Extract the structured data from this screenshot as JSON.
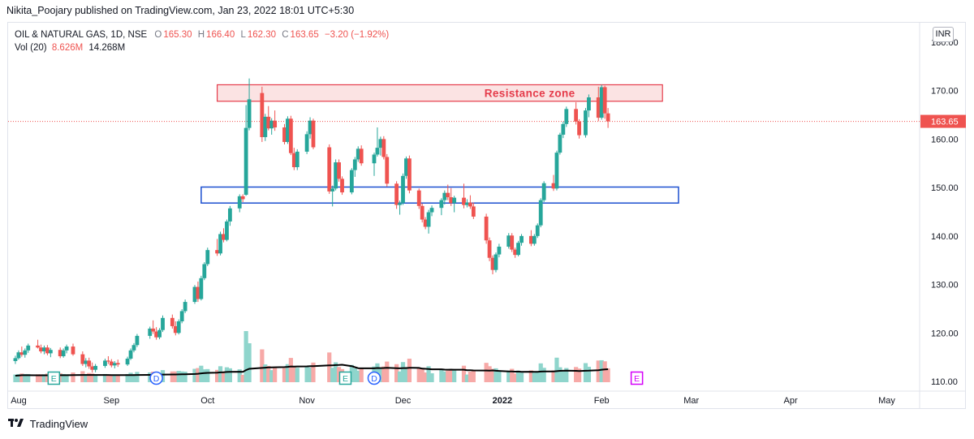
{
  "header": {
    "published_line": "Nikita_Poojary published on TradingView.com, Jan 23, 2022 18:01 UTC+5:30"
  },
  "legend": {
    "symbol_line": "OIL & NATURAL GAS, 1D, NSE",
    "o_label": "O",
    "o_value": "165.30",
    "h_label": "H",
    "h_value": "166.40",
    "l_label": "L",
    "l_value": "162.30",
    "c_label": "C",
    "c_value": "163.65",
    "change": "−3.20 (−1.92%)",
    "vol_label": "Vol (20)",
    "vol_value": "8.626M",
    "vol_ma_value": "14.268M"
  },
  "currency": "INR",
  "footer": {
    "brand": "TradingView"
  },
  "colors": {
    "up": "#26a69a",
    "down": "#ef5350",
    "vol_up": "#8fd5cc",
    "vol_down": "#f7a9a7",
    "resistance_fill": "#fbe3e3",
    "resistance_stroke": "#e53b4a",
    "support_stroke": "#1c4fd0",
    "ma_line": "#000000",
    "price_tag": "#ef5350",
    "event_earnings": "#26a69a",
    "event_dividend": "#2962ff",
    "event_future": "#d500f9"
  },
  "chart_data": {
    "type": "candlestick",
    "symbol": "OIL & NATURAL GAS",
    "interval": "1D",
    "exchange": "NSE",
    "last_price": 163.65,
    "ylim": [
      108,
      184
    ],
    "y_ticks": [
      "110.00",
      "120.00",
      "130.00",
      "140.00",
      "150.00",
      "160.00",
      "170.00",
      "180.00"
    ],
    "x_ticks": [
      "Aug",
      "Sep",
      "Oct",
      "Nov",
      "Dec",
      "2022",
      "Feb",
      "Mar",
      "Apr",
      "May"
    ],
    "x_range": [
      "2021-08-01",
      "2022-05-10"
    ],
    "annotations": [
      {
        "type": "rectangle",
        "label": "Resistance zone",
        "price_low": 167.8,
        "price_high": 171.2,
        "date_start": "2021-10-04",
        "date_end": "2022-02-20"
      },
      {
        "type": "rectangle",
        "label": "",
        "price_low": 146.8,
        "price_high": 150.1,
        "date_start": "2021-09-29",
        "date_end": "2022-02-25"
      }
    ],
    "events": [
      {
        "type": "earnings",
        "letter": "E",
        "date": "2021-08-14"
      },
      {
        "type": "dividend",
        "letter": "D",
        "date": "2021-09-15"
      },
      {
        "type": "earnings",
        "letter": "E",
        "date": "2021-11-13"
      },
      {
        "type": "dividend",
        "letter": "D",
        "date": "2021-11-22"
      },
      {
        "type": "earnings_upcoming",
        "letter": "E",
        "date": "2022-02-12"
      }
    ],
    "candles": [
      {
        "d": "2021-08-02",
        "o": 114.2,
        "h": 115.3,
        "l": 113.6,
        "c": 114.8
      },
      {
        "d": "2021-08-03",
        "o": 114.8,
        "h": 116.4,
        "l": 114.5,
        "c": 116.0
      },
      {
        "d": "2021-08-04",
        "o": 116.0,
        "h": 117.2,
        "l": 115.1,
        "c": 115.5
      },
      {
        "d": "2021-08-05",
        "o": 115.5,
        "h": 116.8,
        "l": 114.9,
        "c": 116.4
      },
      {
        "d": "2021-08-06",
        "o": 116.4,
        "h": 117.8,
        "l": 115.9,
        "c": 117.4
      },
      {
        "d": "2021-08-09",
        "o": 117.4,
        "h": 118.6,
        "l": 116.8,
        "c": 117.0
      },
      {
        "d": "2021-08-10",
        "o": 117.0,
        "h": 117.6,
        "l": 115.8,
        "c": 116.2
      },
      {
        "d": "2021-08-11",
        "o": 116.2,
        "h": 117.4,
        "l": 115.6,
        "c": 117.0
      },
      {
        "d": "2021-08-12",
        "o": 117.0,
        "h": 117.5,
        "l": 115.4,
        "c": 115.8
      },
      {
        "d": "2021-08-13",
        "o": 115.8,
        "h": 116.9,
        "l": 115.0,
        "c": 116.5
      },
      {
        "d": "2021-08-16",
        "o": 116.5,
        "h": 117.0,
        "l": 114.8,
        "c": 115.2
      },
      {
        "d": "2021-08-17",
        "o": 115.2,
        "h": 116.8,
        "l": 114.9,
        "c": 116.4
      },
      {
        "d": "2021-08-18",
        "o": 116.4,
        "h": 117.6,
        "l": 115.8,
        "c": 117.2
      },
      {
        "d": "2021-08-20",
        "o": 117.2,
        "h": 117.8,
        "l": 115.3,
        "c": 115.6
      },
      {
        "d": "2021-08-23",
        "o": 115.6,
        "h": 116.2,
        "l": 113.2,
        "c": 113.6
      },
      {
        "d": "2021-08-24",
        "o": 113.6,
        "h": 114.8,
        "l": 112.9,
        "c": 114.3
      },
      {
        "d": "2021-08-25",
        "o": 114.3,
        "h": 114.9,
        "l": 112.6,
        "c": 113.1
      },
      {
        "d": "2021-08-26",
        "o": 113.1,
        "h": 113.9,
        "l": 111.8,
        "c": 112.4
      },
      {
        "d": "2021-08-27",
        "o": 112.4,
        "h": 113.6,
        "l": 111.9,
        "c": 113.2
      },
      {
        "d": "2021-08-30",
        "o": 113.2,
        "h": 114.7,
        "l": 112.8,
        "c": 114.3
      },
      {
        "d": "2021-08-31",
        "o": 114.3,
        "h": 115.2,
        "l": 113.6,
        "c": 114.1
      },
      {
        "d": "2021-09-01",
        "o": 114.1,
        "h": 114.6,
        "l": 112.9,
        "c": 113.3
      },
      {
        "d": "2021-09-02",
        "o": 113.3,
        "h": 114.2,
        "l": 112.7,
        "c": 113.8
      },
      {
        "d": "2021-09-03",
        "o": 113.8,
        "h": 114.5,
        "l": 113.0,
        "c": 113.5
      },
      {
        "d": "2021-09-06",
        "o": 113.5,
        "h": 115.1,
        "l": 113.2,
        "c": 114.7
      },
      {
        "d": "2021-09-07",
        "o": 114.7,
        "h": 116.8,
        "l": 114.4,
        "c": 116.4
      },
      {
        "d": "2021-09-08",
        "o": 116.4,
        "h": 117.9,
        "l": 116.0,
        "c": 117.5
      },
      {
        "d": "2021-09-09",
        "o": 117.5,
        "h": 119.8,
        "l": 117.1,
        "c": 119.4
      },
      {
        "d": "2021-09-13",
        "o": 119.4,
        "h": 121.3,
        "l": 118.8,
        "c": 120.9
      },
      {
        "d": "2021-09-14",
        "o": 120.9,
        "h": 122.6,
        "l": 119.8,
        "c": 120.3
      },
      {
        "d": "2021-09-15",
        "o": 120.3,
        "h": 121.2,
        "l": 118.6,
        "c": 119.1
      },
      {
        "d": "2021-09-16",
        "o": 119.1,
        "h": 121.0,
        "l": 118.7,
        "c": 120.6
      },
      {
        "d": "2021-09-17",
        "o": 120.6,
        "h": 123.6,
        "l": 120.2,
        "c": 123.1
      },
      {
        "d": "2021-09-20",
        "o": 123.1,
        "h": 123.8,
        "l": 120.9,
        "c": 121.4
      },
      {
        "d": "2021-09-21",
        "o": 121.4,
        "h": 122.4,
        "l": 119.5,
        "c": 120.0
      },
      {
        "d": "2021-09-22",
        "o": 120.0,
        "h": 122.8,
        "l": 119.7,
        "c": 122.4
      },
      {
        "d": "2021-09-23",
        "o": 122.4,
        "h": 124.9,
        "l": 122.0,
        "c": 124.5
      },
      {
        "d": "2021-09-24",
        "o": 124.5,
        "h": 126.9,
        "l": 124.1,
        "c": 126.4
      },
      {
        "d": "2021-09-27",
        "o": 126.4,
        "h": 129.9,
        "l": 126.0,
        "c": 129.5
      },
      {
        "d": "2021-09-28",
        "o": 129.5,
        "h": 130.6,
        "l": 126.4,
        "c": 127.0
      },
      {
        "d": "2021-09-29",
        "o": 127.0,
        "h": 131.8,
        "l": 126.7,
        "c": 131.3
      },
      {
        "d": "2021-09-30",
        "o": 131.3,
        "h": 134.6,
        "l": 130.9,
        "c": 134.2
      },
      {
        "d": "2021-10-01",
        "o": 134.2,
        "h": 137.6,
        "l": 133.8,
        "c": 137.1
      },
      {
        "d": "2021-10-04",
        "o": 137.1,
        "h": 139.4,
        "l": 135.9,
        "c": 136.4
      },
      {
        "d": "2021-10-05",
        "o": 136.4,
        "h": 140.9,
        "l": 136.0,
        "c": 140.4
      },
      {
        "d": "2021-10-06",
        "o": 140.4,
        "h": 141.6,
        "l": 138.7,
        "c": 139.2
      },
      {
        "d": "2021-10-07",
        "o": 139.2,
        "h": 143.4,
        "l": 138.9,
        "c": 143.0
      },
      {
        "d": "2021-10-08",
        "o": 143.0,
        "h": 146.2,
        "l": 142.1,
        "c": 145.7
      },
      {
        "d": "2021-10-11",
        "o": 145.7,
        "h": 148.6,
        "l": 144.9,
        "c": 148.2
      },
      {
        "d": "2021-10-12",
        "o": 148.2,
        "h": 148.6,
        "l": 147.0,
        "c": 147.6
      },
      {
        "d": "2021-10-13",
        "o": 148.5,
        "h": 167.0,
        "l": 148.3,
        "c": 162.3
      },
      {
        "d": "2021-10-14",
        "o": 162.3,
        "h": 172.5,
        "l": 161.8,
        "c": 168.2
      },
      {
        "d": "2021-10-18",
        "o": 169.5,
        "h": 170.8,
        "l": 159.4,
        "c": 160.4
      },
      {
        "d": "2021-10-19",
        "o": 160.4,
        "h": 165.2,
        "l": 159.6,
        "c": 164.6
      },
      {
        "d": "2021-10-20",
        "o": 164.6,
        "h": 166.8,
        "l": 161.8,
        "c": 162.2
      },
      {
        "d": "2021-10-21",
        "o": 162.2,
        "h": 164.3,
        "l": 160.9,
        "c": 163.8
      },
      {
        "d": "2021-10-22",
        "o": 163.8,
        "h": 165.9,
        "l": 161.7,
        "c": 162.4
      },
      {
        "d": "2021-10-25",
        "o": 162.4,
        "h": 163.1,
        "l": 158.9,
        "c": 159.4
      },
      {
        "d": "2021-10-26",
        "o": 159.4,
        "h": 164.7,
        "l": 159.0,
        "c": 164.2
      },
      {
        "d": "2021-10-27",
        "o": 164.2,
        "h": 164.8,
        "l": 156.7,
        "c": 157.1
      },
      {
        "d": "2021-10-28",
        "o": 157.1,
        "h": 158.2,
        "l": 153.6,
        "c": 154.2
      },
      {
        "d": "2021-10-29",
        "o": 154.2,
        "h": 157.9,
        "l": 153.6,
        "c": 157.4
      },
      {
        "d": "2021-11-01",
        "o": 157.4,
        "h": 161.6,
        "l": 156.9,
        "c": 161.0
      },
      {
        "d": "2021-11-02",
        "o": 161.0,
        "h": 164.5,
        "l": 160.1,
        "c": 163.8
      },
      {
        "d": "2021-11-03",
        "o": 163.8,
        "h": 164.2,
        "l": 157.9,
        "c": 158.3
      },
      {
        "d": "2021-11-08",
        "o": 158.3,
        "h": 158.9,
        "l": 148.7,
        "c": 149.2
      },
      {
        "d": "2021-11-09",
        "o": 149.2,
        "h": 150.4,
        "l": 146.1,
        "c": 149.8
      },
      {
        "d": "2021-11-10",
        "o": 149.8,
        "h": 155.8,
        "l": 149.4,
        "c": 155.2
      },
      {
        "d": "2021-11-11",
        "o": 155.2,
        "h": 155.8,
        "l": 151.2,
        "c": 151.8
      },
      {
        "d": "2021-11-12",
        "o": 151.8,
        "h": 152.3,
        "l": 148.5,
        "c": 149.0
      },
      {
        "d": "2021-11-15",
        "o": 149.0,
        "h": 154.0,
        "l": 148.6,
        "c": 153.6
      },
      {
        "d": "2021-11-16",
        "o": 153.6,
        "h": 156.3,
        "l": 152.2,
        "c": 155.8
      },
      {
        "d": "2021-11-17",
        "o": 155.8,
        "h": 158.5,
        "l": 155.3,
        "c": 158.0
      },
      {
        "d": "2021-11-18",
        "o": 158.0,
        "h": 158.7,
        "l": 154.5,
        "c": 155.0
      },
      {
        "d": "2021-11-22",
        "o": 155.0,
        "h": 157.2,
        "l": 152.4,
        "c": 156.8
      },
      {
        "d": "2021-11-23",
        "o": 156.8,
        "h": 162.4,
        "l": 156.4,
        "c": 158.2
      },
      {
        "d": "2021-11-24",
        "o": 158.2,
        "h": 160.5,
        "l": 156.6,
        "c": 160.0
      },
      {
        "d": "2021-11-25",
        "o": 160.0,
        "h": 160.6,
        "l": 155.8,
        "c": 156.3
      },
      {
        "d": "2021-11-26",
        "o": 156.3,
        "h": 156.9,
        "l": 150.2,
        "c": 150.8
      },
      {
        "d": "2021-11-29",
        "o": 150.8,
        "h": 151.3,
        "l": 145.6,
        "c": 146.4
      },
      {
        "d": "2021-11-30",
        "o": 146.4,
        "h": 147.3,
        "l": 144.4,
        "c": 146.8
      },
      {
        "d": "2021-12-01",
        "o": 146.8,
        "h": 152.9,
        "l": 146.4,
        "c": 152.4
      },
      {
        "d": "2021-12-02",
        "o": 152.4,
        "h": 156.4,
        "l": 151.8,
        "c": 156.0
      },
      {
        "d": "2021-12-03",
        "o": 156.0,
        "h": 156.6,
        "l": 148.8,
        "c": 149.4
      },
      {
        "d": "2021-12-06",
        "o": 149.4,
        "h": 149.8,
        "l": 145.6,
        "c": 146.2
      },
      {
        "d": "2021-12-07",
        "o": 146.2,
        "h": 146.7,
        "l": 142.8,
        "c": 143.4
      },
      {
        "d": "2021-12-08",
        "o": 143.4,
        "h": 143.9,
        "l": 141.4,
        "c": 141.9
      },
      {
        "d": "2021-12-09",
        "o": 141.9,
        "h": 145.4,
        "l": 140.5,
        "c": 144.9
      },
      {
        "d": "2021-12-10",
        "o": 144.9,
        "h": 146.3,
        "l": 144.1,
        "c": 145.8
      },
      {
        "d": "2021-12-13",
        "o": 145.8,
        "h": 147.8,
        "l": 144.3,
        "c": 147.4
      },
      {
        "d": "2021-12-14",
        "o": 147.4,
        "h": 149.4,
        "l": 146.5,
        "c": 148.9
      },
      {
        "d": "2021-12-15",
        "o": 148.9,
        "h": 150.6,
        "l": 147.4,
        "c": 148.0
      },
      {
        "d": "2021-12-16",
        "o": 148.0,
        "h": 149.9,
        "l": 146.2,
        "c": 146.8
      },
      {
        "d": "2021-12-17",
        "o": 146.8,
        "h": 148.3,
        "l": 144.9,
        "c": 147.9
      },
      {
        "d": "2021-12-20",
        "o": 147.9,
        "h": 150.8,
        "l": 145.7,
        "c": 146.4
      },
      {
        "d": "2021-12-21",
        "o": 146.4,
        "h": 147.6,
        "l": 145.9,
        "c": 146.9
      },
      {
        "d": "2021-12-22",
        "o": 146.9,
        "h": 148.4,
        "l": 145.6,
        "c": 146.1
      },
      {
        "d": "2021-12-23",
        "o": 146.1,
        "h": 146.9,
        "l": 143.5,
        "c": 144.0
      },
      {
        "d": "2021-12-27",
        "o": 144.0,
        "h": 144.6,
        "l": 138.4,
        "c": 139.1
      },
      {
        "d": "2021-12-28",
        "o": 139.1,
        "h": 139.7,
        "l": 134.8,
        "c": 135.5
      },
      {
        "d": "2021-12-29",
        "o": 135.5,
        "h": 136.0,
        "l": 132.1,
        "c": 133.0
      },
      {
        "d": "2021-12-30",
        "o": 133.0,
        "h": 136.6,
        "l": 132.5,
        "c": 136.2
      },
      {
        "d": "2021-12-31",
        "o": 136.2,
        "h": 138.4,
        "l": 135.6,
        "c": 137.8
      },
      {
        "d": "2022-01-03",
        "o": 137.8,
        "h": 140.6,
        "l": 137.4,
        "c": 140.1
      },
      {
        "d": "2022-01-04",
        "o": 140.1,
        "h": 140.6,
        "l": 136.7,
        "c": 137.2
      },
      {
        "d": "2022-01-05",
        "o": 137.2,
        "h": 137.6,
        "l": 135.5,
        "c": 136.1
      },
      {
        "d": "2022-01-06",
        "o": 136.1,
        "h": 139.0,
        "l": 135.8,
        "c": 138.6
      },
      {
        "d": "2022-01-07",
        "o": 138.6,
        "h": 140.4,
        "l": 138.0,
        "c": 140.0
      },
      {
        "d": "2022-01-10",
        "o": 140.0,
        "h": 141.2,
        "l": 137.9,
        "c": 138.4
      },
      {
        "d": "2022-01-11",
        "o": 138.4,
        "h": 140.4,
        "l": 138.0,
        "c": 140.0
      },
      {
        "d": "2022-01-12",
        "o": 140.0,
        "h": 142.6,
        "l": 139.6,
        "c": 142.2
      },
      {
        "d": "2022-01-13",
        "o": 142.2,
        "h": 147.8,
        "l": 141.8,
        "c": 147.4
      },
      {
        "d": "2022-01-14",
        "o": 147.4,
        "h": 151.3,
        "l": 147.0,
        "c": 150.9
      },
      {
        "d": "2022-01-17",
        "o": 150.9,
        "h": 152.6,
        "l": 149.3,
        "c": 149.8
      },
      {
        "d": "2022-01-18",
        "o": 149.8,
        "h": 157.6,
        "l": 149.4,
        "c": 157.2
      },
      {
        "d": "2022-01-19",
        "o": 157.2,
        "h": 161.3,
        "l": 156.8,
        "c": 160.9
      },
      {
        "d": "2022-01-20",
        "o": 160.9,
        "h": 163.6,
        "l": 160.2,
        "c": 163.1
      },
      {
        "d": "2022-01-21",
        "o": 163.1,
        "h": 166.7,
        "l": 162.5,
        "c": 166.2
      },
      {
        "d": "2022-01-24",
        "o": 166.2,
        "h": 167.6,
        "l": 163.0,
        "c": 163.6
      },
      {
        "d": "2022-01-25",
        "o": 163.6,
        "h": 164.1,
        "l": 160.1,
        "c": 160.8
      },
      {
        "d": "2022-01-27",
        "o": 160.8,
        "h": 166.4,
        "l": 160.3,
        "c": 165.9
      },
      {
        "d": "2022-01-28",
        "o": 165.9,
        "h": 169.2,
        "l": 164.5,
        "c": 168.6
      },
      {
        "d": "2022-01-31",
        "o": 168.6,
        "h": 170.8,
        "l": 163.7,
        "c": 164.4
      },
      {
        "d": "2022-02-01",
        "o": 164.4,
        "h": 171.2,
        "l": 164.0,
        "c": 170.7
      },
      {
        "d": "2022-02-02",
        "o": 170.7,
        "h": 171.0,
        "l": 164.2,
        "c": 165.3
      },
      {
        "d": "2022-02-03",
        "o": 165.3,
        "h": 166.4,
        "l": 162.3,
        "c": 163.65
      }
    ],
    "volume": {
      "name": "Vol (20)",
      "last": "8.626M",
      "ma_last": "14.268M"
    }
  }
}
